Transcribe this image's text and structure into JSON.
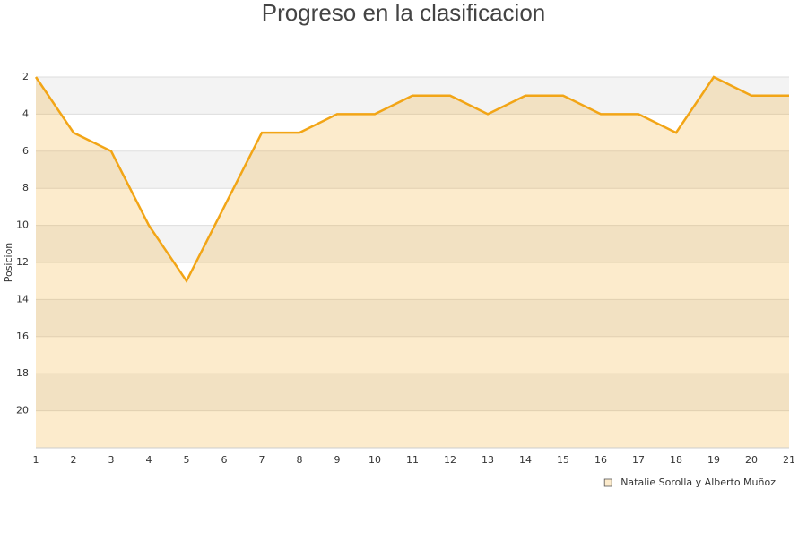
{
  "chart_data": {
    "type": "area",
    "title": "Progreso en la clasificacion",
    "y_label": "Posicion",
    "x": [
      1,
      2,
      3,
      4,
      5,
      6,
      7,
      8,
      9,
      10,
      11,
      12,
      13,
      14,
      15,
      16,
      17,
      18,
      19,
      20,
      21
    ],
    "series": [
      {
        "name": "Natalie Sorolla y Alberto Muñoz",
        "color": "#f2a516",
        "values": [
          2,
          5,
          6,
          10,
          13,
          9,
          5,
          5,
          4,
          4,
          3,
          3,
          4,
          3,
          3,
          4,
          4,
          5,
          2,
          3,
          3
        ]
      }
    ],
    "xlim": [
      1,
      21
    ],
    "xticks": [
      1,
      2,
      3,
      4,
      5,
      6,
      7,
      8,
      9,
      10,
      11,
      12,
      13,
      14,
      15,
      16,
      17,
      18,
      19,
      20,
      21
    ],
    "ylim": [
      2,
      22
    ],
    "yticks": [
      2,
      4,
      6,
      8,
      10,
      12,
      14,
      16,
      18,
      20
    ],
    "y_inverted": true,
    "grid": true,
    "legend": "bottom-right"
  }
}
